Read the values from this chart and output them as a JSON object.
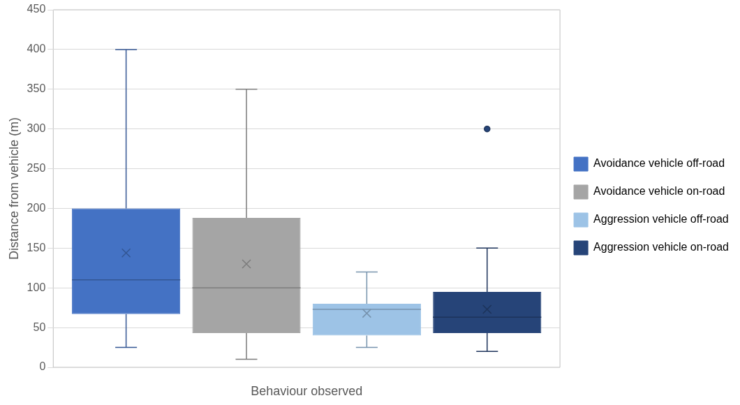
{
  "chart_data": {
    "type": "box",
    "xlabel": "Behaviour observed",
    "ylabel": "Distance from vehicle (m)",
    "categories": [
      null
    ],
    "series": [
      {
        "name": "Avoidance vehicle off-road",
        "color": "#4472c4",
        "boxes": [
          {
            "low": 25,
            "q1": 67,
            "median": 110,
            "q3": 200,
            "high": 400,
            "mean": 144
          }
        ]
      },
      {
        "name": "Avoidance vehicle on-road",
        "color": "#a5a5a5",
        "boxes": [
          {
            "low": 10,
            "q1": 43,
            "median": 100,
            "q3": 188,
            "high": 350,
            "mean": 130
          }
        ]
      },
      {
        "name": "Aggression vehicle off-road",
        "color": "#9dc3e6",
        "boxes": [
          {
            "low": 25,
            "q1": 40,
            "median": 73,
            "q3": 80,
            "high": 120,
            "mean": 68
          }
        ]
      },
      {
        "name": "Aggression vehicle on-road",
        "color": "#264478",
        "boxes": [
          {
            "low": 20,
            "q1": 43,
            "median": 63,
            "q3": 95,
            "high": 150,
            "mean": 73,
            "outliers": [
              300
            ]
          }
        ]
      }
    ],
    "ylim": [
      0,
      450
    ],
    "yticks": [
      0,
      50,
      100,
      150,
      200,
      250,
      300,
      350,
      400,
      450
    ],
    "grid": "y",
    "legend": "right"
  }
}
